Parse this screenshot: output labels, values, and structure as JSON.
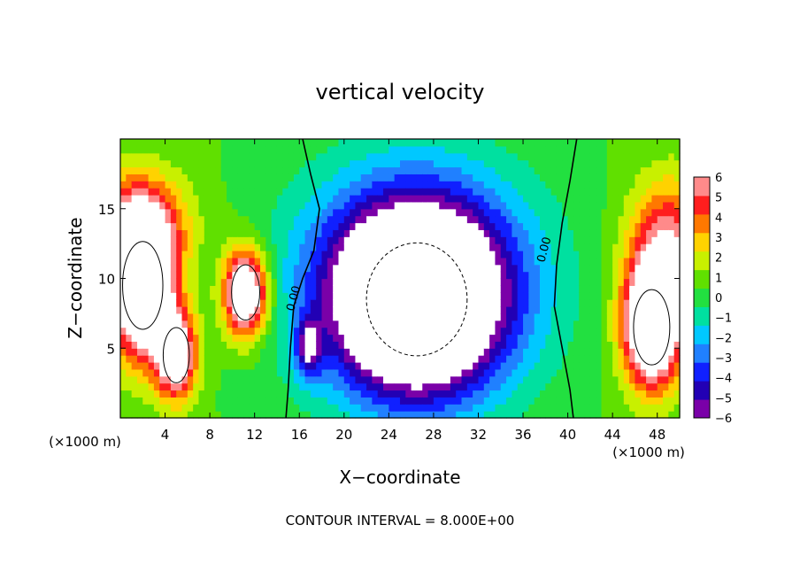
{
  "chart_data": {
    "type": "heatmap",
    "title": "vertical velocity",
    "xlabel": "X−coordinate",
    "ylabel": "Z−coordinate",
    "x_unit_label": "(×1000 m)",
    "x_unit_label_right": "(×1000 m)",
    "xlim": [
      0,
      50
    ],
    "ylim": [
      0,
      20
    ],
    "xticks": [
      4,
      8,
      12,
      16,
      20,
      24,
      28,
      32,
      36,
      40,
      44,
      48
    ],
    "yticks": [
      5,
      10,
      15
    ],
    "contour_interval_text": "CONTOUR INTERVAL = 8.000E+00",
    "contour_labels": [
      {
        "text": "0.00",
        "x": 15.8,
        "y": 8.5
      },
      {
        "text": "0.00",
        "x": 38.2,
        "y": 12.0
      }
    ],
    "colorbar": {
      "min": -6,
      "max": 6,
      "ticks": [
        6,
        5,
        4,
        3,
        2,
        1,
        0,
        -1,
        -2,
        -3,
        -4,
        -5,
        -6
      ],
      "tick_labels": [
        "6",
        "5",
        "4",
        "3",
        "2",
        "1",
        "0",
        "−1",
        "−2",
        "−3",
        "−4",
        "−5",
        "−6"
      ]
    },
    "field_features": [
      {
        "name": "left updraft core",
        "x": 2.0,
        "z": 9.5,
        "sx": 2.0,
        "sz": 3.5,
        "w": 12
      },
      {
        "name": "left updraft arm",
        "x": 5.0,
        "z": 4.5,
        "sx": 1.3,
        "sz": 2.2,
        "w": 8
      },
      {
        "name": "left updraft upper",
        "x": 1.0,
        "z": 14.0,
        "sx": 3.5,
        "sz": 2.5,
        "w": 5
      },
      {
        "name": "updraft mid-left",
        "x": 11.2,
        "z": 9.0,
        "sx": 1.4,
        "sz": 2.2,
        "w": 10
      },
      {
        "name": "central downdraft core",
        "x": 26.5,
        "z": 8.5,
        "sx": 5.0,
        "sz": 4.5,
        "w": -13
      },
      {
        "name": "central downdraft halo",
        "x": 26.5,
        "z": 10.0,
        "sx": 8.0,
        "sz": 6.0,
        "w": -5
      },
      {
        "name": "downdraft lower-left",
        "x": 16.8,
        "z": 5.0,
        "sx": 0.8,
        "sz": 1.5,
        "w": -5
      },
      {
        "name": "right updraft core",
        "x": 47.5,
        "z": 6.5,
        "sx": 1.8,
        "sz": 3.0,
        "w": 11
      },
      {
        "name": "right updraft upper",
        "x": 49.0,
        "z": 12.0,
        "sx": 2.5,
        "sz": 3.5,
        "w": 6
      },
      {
        "name": "background",
        "w": 0.6
      }
    ]
  }
}
